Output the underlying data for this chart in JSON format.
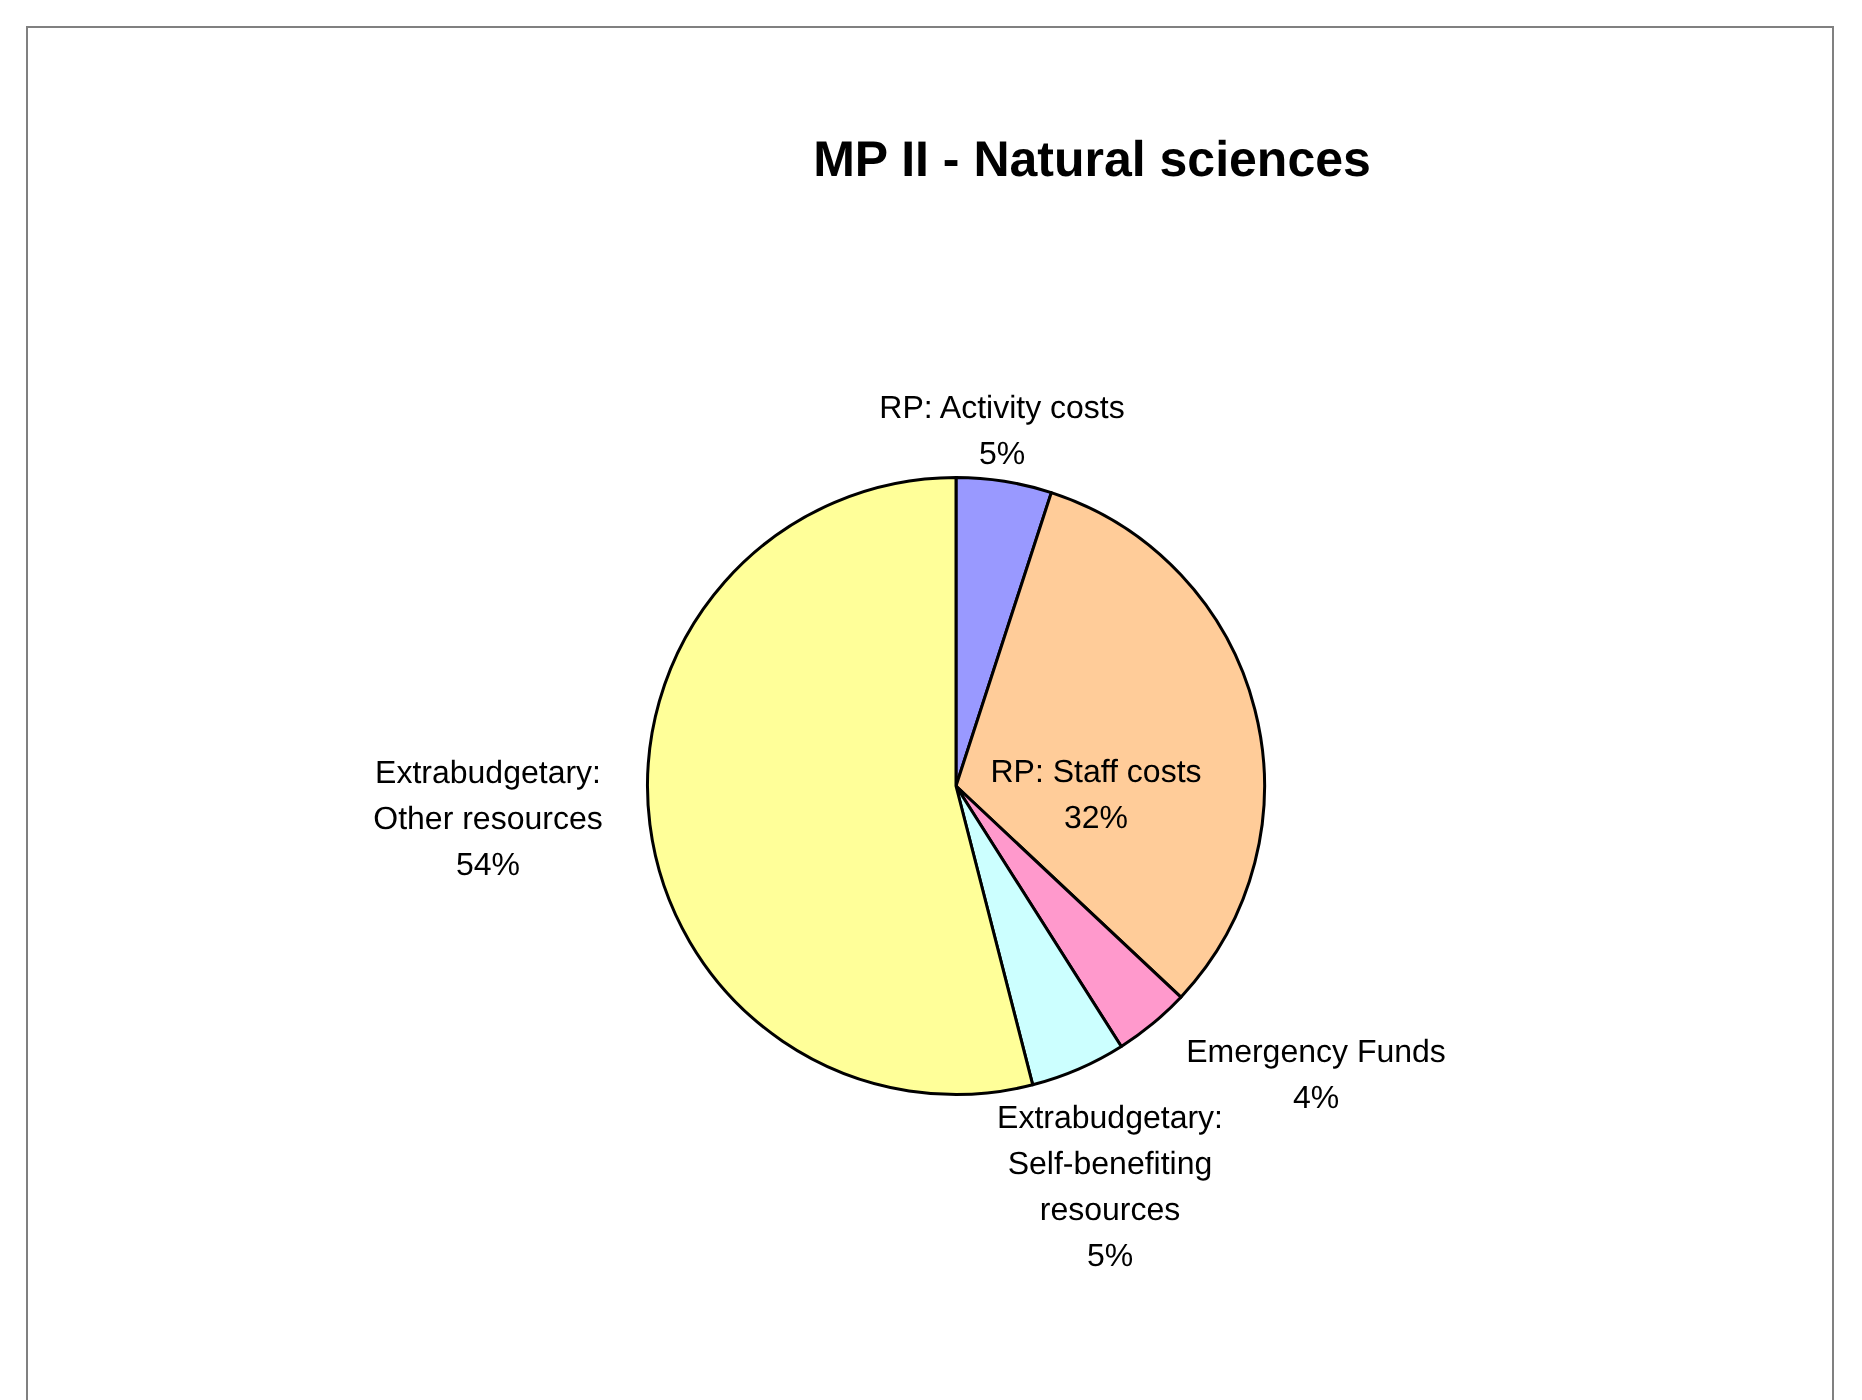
{
  "chart_data": {
    "type": "pie",
    "title": "MP II - Natural sciences",
    "categories": [
      "RP: Activity costs",
      "RP: Staff costs",
      "Emergency Funds",
      "Extrabudgetary: Self-benefiting resources",
      "Extrabudgetary: Other resources"
    ],
    "values": [
      5,
      32,
      4,
      5,
      54
    ],
    "colors": [
      "#9999ff",
      "#ffcc99",
      "#ff99cc",
      "#ccffff",
      "#ffff99"
    ],
    "value_labels": [
      "5%",
      "32%",
      "4%",
      "5%",
      "54%"
    ],
    "legend": false
  }
}
